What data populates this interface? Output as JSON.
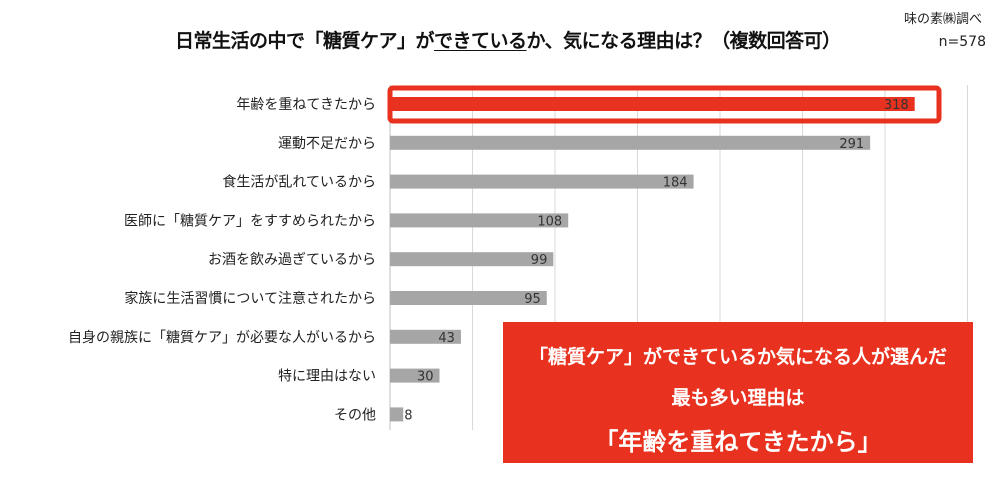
{
  "title_pre": "日常生活の中で「糖質ケア」が",
  "title_under": "できている",
  "title_post": "か、気になる理由は？（複数回答可）",
  "source": "味の素㈱調べ",
  "n": "n=578",
  "accent": "#e8321f",
  "bar_color": "#a6a6a6",
  "callout": {
    "line1": "「糖質ケア」ができているか気になる人が選んだ",
    "line2": "最も多い理由は",
    "line3": "「年齢を重ねてきたから」"
  },
  "chart_data": {
    "type": "bar",
    "orientation": "horizontal",
    "title": "日常生活の中で「糖質ケア」ができているか、気になる理由は？（複数回答可）",
    "categories": [
      "年齢を重ねてきたから",
      "運動不足だから",
      "食生活が乱れているから",
      "医師に「糖質ケア」をすすめられたから",
      "お酒を飲み過ぎているから",
      "家族に生活習慣について注意されたから",
      "自身の親族に「糖質ケア」が必要な人がいるから",
      "特に理由はない",
      "その他"
    ],
    "values": [
      318,
      291,
      184,
      108,
      99,
      95,
      43,
      30,
      8
    ],
    "highlight_index": 0,
    "xlim": [
      0,
      350
    ],
    "grid_step": 50,
    "grid": true
  }
}
